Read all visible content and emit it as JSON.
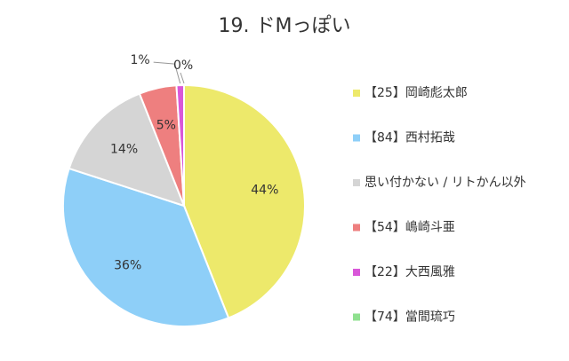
{
  "chart_data": {
    "type": "pie",
    "title": "19. ドMっぽい",
    "categories": [
      "【25】岡崎彪太郎",
      "【84】西村拓哉",
      "思い付かない / リトかん以外",
      "【54】嶋崎斗亜",
      "【22】大西風雅",
      "【74】當間琉巧"
    ],
    "values": [
      44,
      36,
      14,
      5,
      1,
      0
    ],
    "value_labels": [
      "44%",
      "36%",
      "14%",
      "5%",
      "1%",
      "0%"
    ],
    "colors": [
      "#ede96b",
      "#8ecff8",
      "#d5d5d5",
      "#ee7f7f",
      "#d957d9",
      "#8fe08f"
    ],
    "legend": "right"
  }
}
